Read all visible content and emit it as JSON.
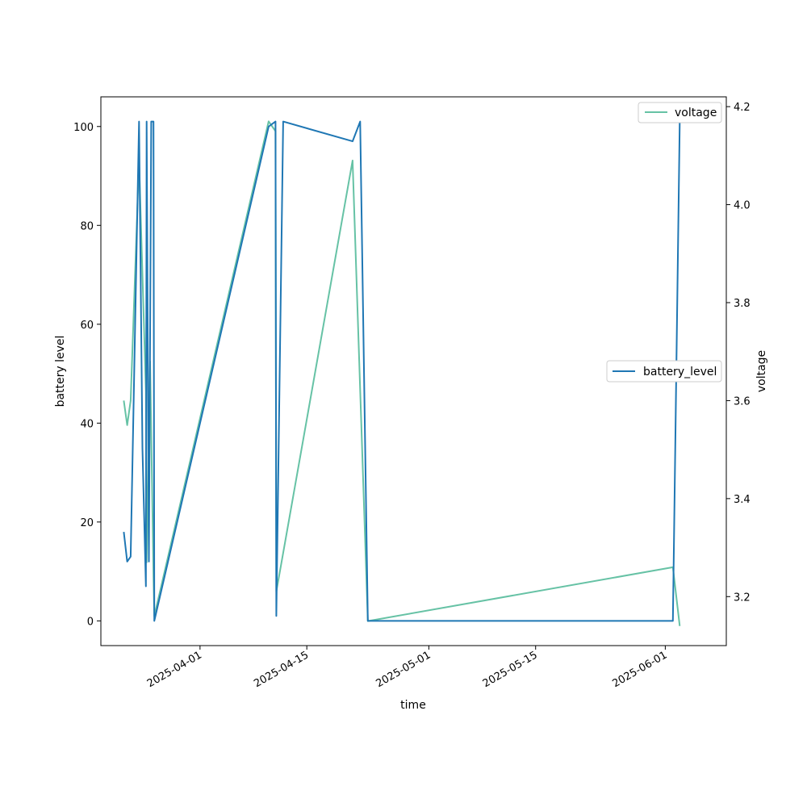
{
  "chart_data": {
    "type": "line",
    "xlabel": "time",
    "ylabel_left": "battery level",
    "ylabel_right": "voltage",
    "ylim_left": [
      -5,
      106
    ],
    "ylim_right": [
      3.1,
      4.22
    ],
    "xlim": [
      "2025-03-19",
      "2025-06-09"
    ],
    "x_ticks": [
      "2025-04-01",
      "2025-04-15",
      "2025-05-01",
      "2025-05-15",
      "2025-06-01"
    ],
    "y_ticks_left": [
      0,
      20,
      40,
      60,
      80,
      100
    ],
    "y_ticks_right": [
      "3.2",
      "3.4",
      "3.6",
      "3.8",
      "4.0",
      "4.2"
    ],
    "colors": {
      "battery_level": "#1f77b4",
      "voltage": "#66c2a5"
    },
    "series": [
      {
        "name": "battery_level",
        "axis": "left",
        "points": [
          [
            "2025-03-22",
            18
          ],
          [
            "2025-03-22",
            12
          ],
          [
            "2025-03-22",
            13
          ],
          [
            "2025-03-24",
            101
          ],
          [
            "2025-03-24",
            35
          ],
          [
            "2025-03-24",
            7
          ],
          [
            "2025-03-25",
            101
          ],
          [
            "2025-03-25",
            12
          ],
          [
            "2025-03-25",
            101
          ],
          [
            "2025-03-25",
            101
          ],
          [
            "2025-03-26",
            0
          ],
          [
            "2025-04-10",
            100
          ],
          [
            "2025-04-10",
            101
          ],
          [
            "2025-04-11",
            1
          ],
          [
            "2025-04-11",
            101
          ],
          [
            "2025-04-21",
            97
          ],
          [
            "2025-04-22",
            101
          ],
          [
            "2025-04-23",
            0
          ],
          [
            "2025-06-02",
            0
          ],
          [
            "2025-06-02",
            101
          ]
        ]
      },
      {
        "name": "voltage",
        "axis": "right",
        "points": [
          [
            "2025-03-22",
            3.6
          ],
          [
            "2025-03-22",
            3.55
          ],
          [
            "2025-03-22",
            3.6
          ],
          [
            "2025-03-24",
            4.09
          ],
          [
            "2025-03-24",
            3.62
          ],
          [
            "2025-03-25",
            3.27
          ],
          [
            "2025-03-25",
            3.68
          ],
          [
            "2025-03-25",
            3.24
          ],
          [
            "2025-03-26",
            3.16
          ],
          [
            "2025-04-10",
            4.17
          ],
          [
            "2025-04-10",
            4.15
          ],
          [
            "2025-04-11",
            3.21
          ],
          [
            "2025-04-21",
            4.09
          ],
          [
            "2025-04-23",
            3.15
          ],
          [
            "2025-06-02",
            3.26
          ],
          [
            "2025-06-02",
            3.14
          ]
        ]
      }
    ],
    "legends": [
      {
        "name": "voltage",
        "placement": "top-right"
      },
      {
        "name": "battery_level",
        "placement": "center-right"
      }
    ],
    "grid": false
  }
}
